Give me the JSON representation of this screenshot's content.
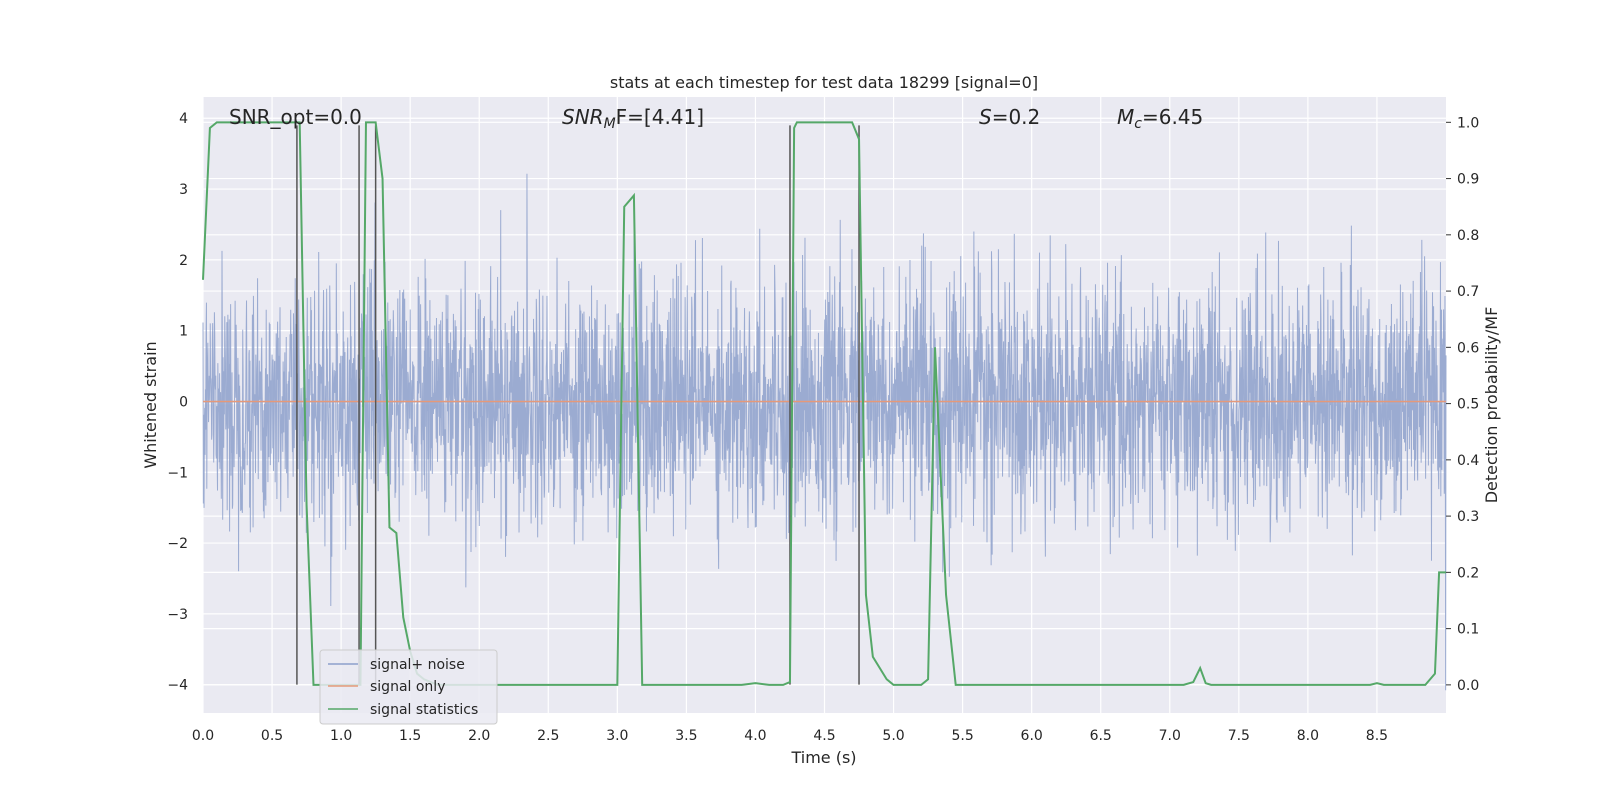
{
  "chart_data": {
    "type": "line",
    "title": "stats at each timestep for test data 18299 [signal=0]",
    "xlabel": "Time (s)",
    "ylabel": "Whitened strain",
    "y2label": "Detection probability/MF",
    "xlim": [
      0.0,
      9.0
    ],
    "ylim": [
      -4.4,
      4.3
    ],
    "y2lim": [
      -0.05,
      1.045
    ],
    "x_ticks": [
      "0.0",
      "0.5",
      "1.0",
      "1.5",
      "2.0",
      "2.5",
      "3.0",
      "3.5",
      "4.0",
      "4.5",
      "5.0",
      "5.5",
      "6.0",
      "6.5",
      "7.0",
      "7.5",
      "8.0",
      "8.5"
    ],
    "y_ticks": [
      "4",
      "3",
      "2",
      "1",
      "0",
      "−1",
      "−2",
      "−3",
      "−4"
    ],
    "y_tick_values": [
      4,
      3,
      2,
      1,
      0,
      -1,
      -2,
      -3,
      -4
    ],
    "y2_ticks": [
      "1.0",
      "0.9",
      "0.8",
      "0.7",
      "0.6",
      "0.5",
      "0.4",
      "0.3",
      "0.2",
      "0.1",
      "0.0"
    ],
    "y2_tick_values": [
      1.0,
      0.9,
      0.8,
      0.7,
      0.6,
      0.5,
      0.4,
      0.3,
      0.2,
      0.1,
      0.0
    ],
    "grid": true,
    "legend_position": "lower-left",
    "annotations": {
      "snr_opt": "SNR_opt=0.0",
      "snr_mf_prefix": "SNR",
      "snr_mf_sub": "M",
      "snr_mf_suffix": "F=[4.41]",
      "s_prefix": "S",
      "s_value": "=0.2",
      "mc_prefix": "M",
      "mc_sub": "c",
      "mc_value": "=6.45"
    },
    "series": [
      {
        "name": "signal+ noise",
        "color": "#8da0cb",
        "kind": "noise",
        "approx_std": 0.85,
        "approx_range": [
          -4.1,
          3.9
        ],
        "x_range": [
          0.0,
          9.0
        ]
      },
      {
        "name": "signal only",
        "color": "#e5997a",
        "kind": "flat",
        "y": 0.0,
        "x_range": [
          0.0,
          9.0
        ]
      },
      {
        "name": "signal statistics",
        "color": "#55a868",
        "axis": "right",
        "x": [
          0.0,
          0.05,
          0.1,
          0.2,
          0.3,
          0.4,
          0.5,
          0.6,
          0.68,
          0.7,
          0.75,
          0.8,
          0.85,
          0.9,
          1.0,
          1.05,
          1.1,
          1.13,
          1.14,
          1.18,
          1.22,
          1.25,
          1.3,
          1.35,
          1.4,
          1.45,
          1.5,
          1.55,
          1.6,
          1.7,
          1.8,
          2.0,
          2.5,
          2.9,
          3.0,
          3.05,
          3.12,
          3.18,
          3.25,
          3.5,
          3.9,
          4.0,
          4.1,
          4.2,
          4.25,
          4.28,
          4.3,
          4.35,
          4.5,
          4.6,
          4.7,
          4.75,
          4.8,
          4.85,
          4.9,
          4.95,
          5.0,
          5.1,
          5.2,
          5.25,
          5.3,
          5.38,
          5.45,
          5.5,
          6.0,
          6.5,
          7.0,
          7.1,
          7.17,
          7.22,
          7.26,
          7.3,
          7.4,
          7.5,
          8.0,
          8.45,
          8.5,
          8.55,
          8.7,
          8.85,
          8.92,
          8.95,
          9.0
        ],
        "y": [
          0.72,
          0.99,
          1.0,
          1.0,
          1.0,
          1.0,
          1.0,
          1.0,
          1.0,
          1.0,
          0.32,
          0.0,
          0.0,
          0.0,
          0.0,
          0.0,
          0.0,
          0.0,
          0.0,
          1.0,
          1.0,
          1.0,
          0.9,
          0.28,
          0.27,
          0.12,
          0.06,
          0.02,
          0.01,
          0.0,
          0.0,
          0.0,
          0.0,
          0.0,
          0.0,
          0.85,
          0.87,
          0.0,
          0.0,
          0.0,
          0.0,
          0.003,
          0.0,
          0.0,
          0.005,
          0.99,
          1.0,
          1.0,
          1.0,
          1.0,
          1.0,
          0.97,
          0.16,
          0.05,
          0.03,
          0.01,
          0.0,
          0.0,
          0.0,
          0.01,
          0.6,
          0.16,
          0.0,
          0.0,
          0.0,
          0.0,
          0.0,
          0.0,
          0.005,
          0.03,
          0.003,
          0.0,
          0.0,
          0.0,
          0.0,
          0.0,
          0.003,
          0.0,
          0.0,
          0.0,
          0.02,
          0.2,
          0.2
        ]
      }
    ],
    "vertical_markers_x": [
      0.68,
      1.13,
      1.25,
      4.25,
      4.75
    ],
    "vertical_markers_range": [
      -4.0,
      3.9
    ],
    "vertical_marker_color": "#555555"
  }
}
